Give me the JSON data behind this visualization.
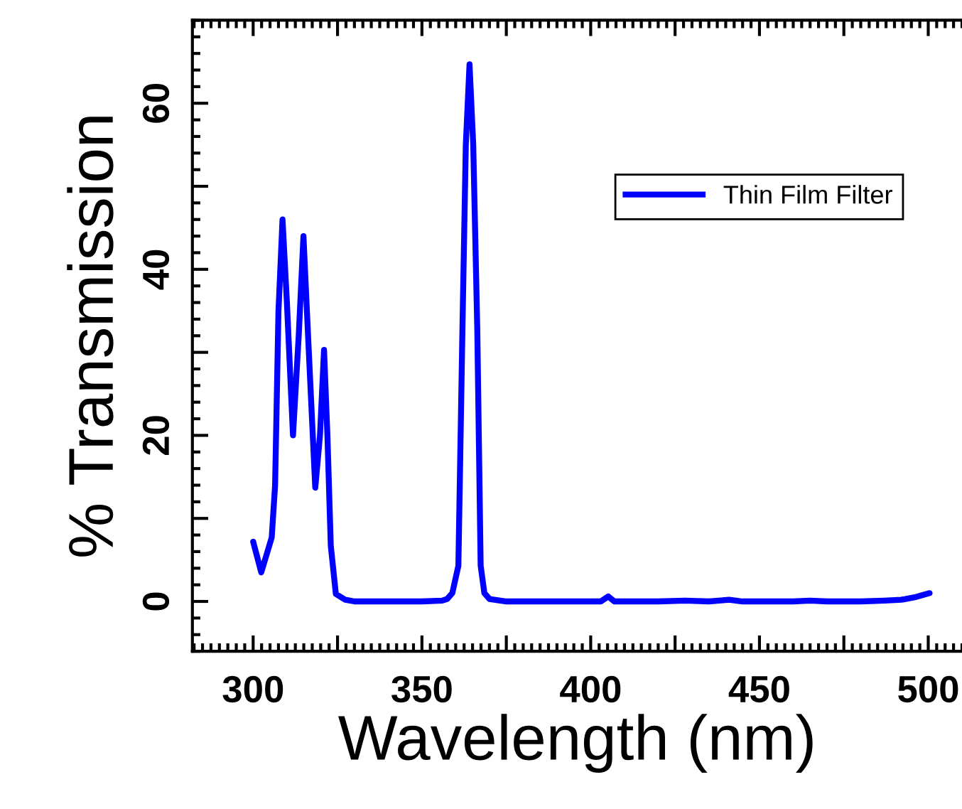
{
  "chart_data": {
    "type": "line",
    "xlabel": "Wavelength (nm)",
    "ylabel": "% Transmission",
    "x": [
      300,
      302.4,
      305.5,
      306.5,
      307.5,
      308.7,
      310,
      311.8,
      313.5,
      314.9,
      316.5,
      318.4,
      319.8,
      321,
      322,
      323,
      324.5,
      327.3,
      330,
      340,
      350,
      356,
      357.5,
      359,
      360.8,
      362,
      363,
      364.1,
      365.2,
      366.4,
      367.4,
      368.5,
      370,
      375,
      390,
      403,
      405.2,
      407,
      420,
      428,
      435,
      441,
      445,
      460,
      465,
      470,
      480,
      487,
      492,
      496,
      500.4
    ],
    "series": [
      {
        "name": "Thin Film Filter",
        "color": "#0000ff",
        "values": [
          7.2,
          3.5,
          7.7,
          14,
          35,
          46,
          36,
          20,
          32,
          44,
          30,
          13.7,
          20,
          30.3,
          20,
          6.7,
          0.9,
          0.2,
          0,
          0,
          0,
          0.1,
          0.3,
          1,
          4.3,
          32.8,
          55,
          64.7,
          55,
          32.8,
          4.3,
          1,
          0.3,
          0,
          0,
          0,
          0.6,
          0,
          0,
          0.1,
          0,
          0.2,
          0,
          0,
          0.1,
          0,
          0,
          0.1,
          0.2,
          0.5,
          1.0
        ]
      }
    ],
    "xlim": [
      282,
      510
    ],
    "ylim": [
      -6,
      70
    ],
    "xticks": [
      300,
      {
        "value": 325,
        "label": null
      },
      350,
      {
        "value": 375,
        "label": null
      },
      400,
      {
        "value": 425,
        "label": null
      },
      450,
      {
        "value": 475,
        "label": null
      },
      500
    ],
    "yticks": [
      0,
      {
        "value": 10,
        "label": null
      },
      20,
      {
        "value": 30,
        "label": null
      },
      40,
      {
        "value": 50,
        "label": null
      },
      60
    ],
    "legend": "right",
    "grid": false
  }
}
